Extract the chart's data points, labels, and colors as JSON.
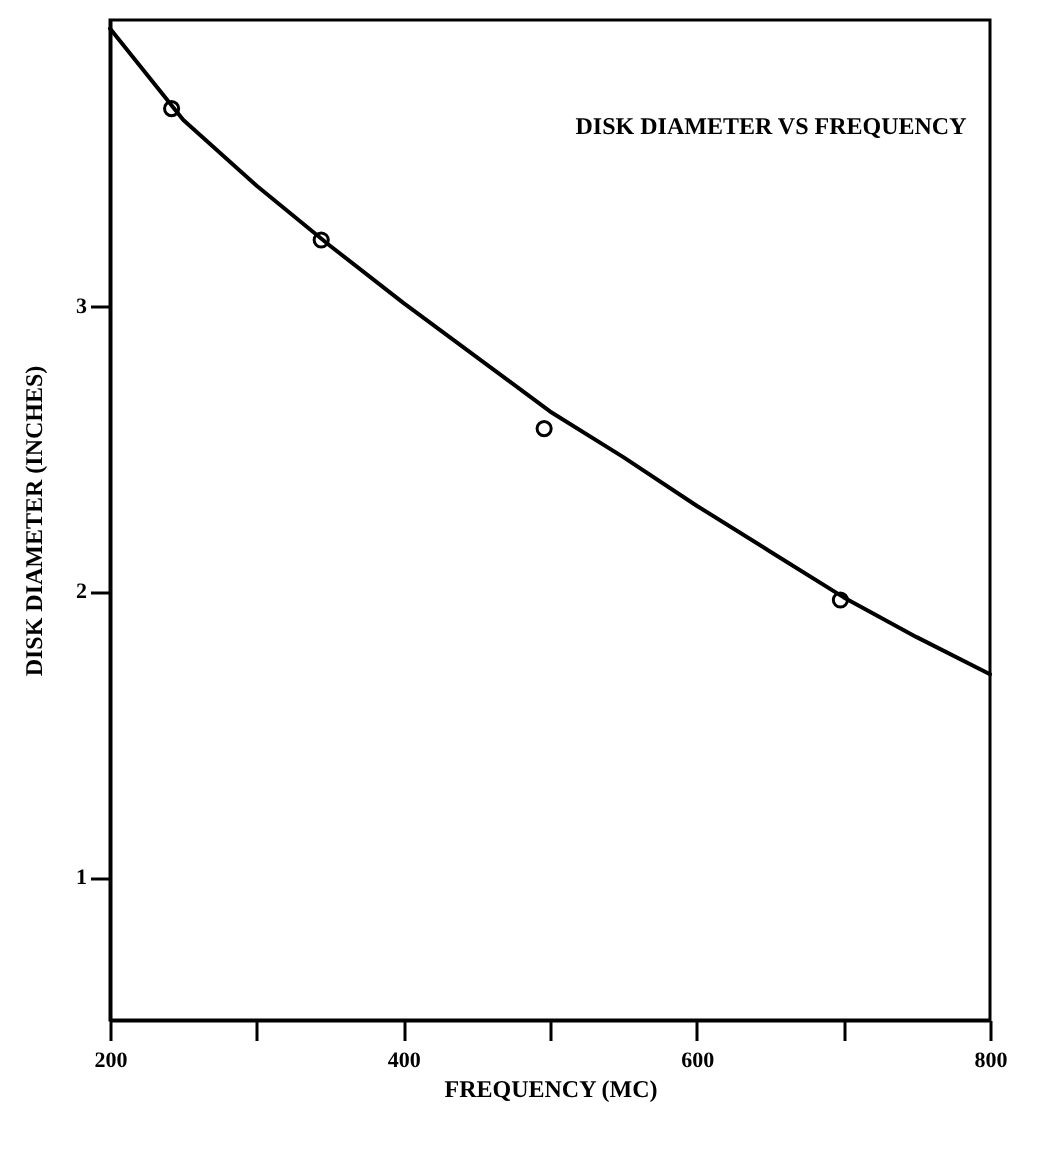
{
  "chart_data": {
    "type": "scatter",
    "title": "DISK DIAMETER   VS   FREQUENCY",
    "xlabel": "FREQUENCY (MC)",
    "ylabel": "DISK DIAMETER   (INCHES)",
    "xlim": [
      200,
      800
    ],
    "xticks": [
      200,
      {
        "value": 300,
        "label": null
      },
      400,
      {
        "value": 500,
        "label": null
      },
      600,
      {
        "value": 700,
        "label": null
      },
      800
    ],
    "ylim": [
      0.5,
      4
    ],
    "yticks": [
      1,
      2,
      3
    ],
    "grid": false,
    "series": [
      {
        "type": "scatter",
        "color": "#000000",
        "marker": "circle",
        "x": [
          242,
          344,
          496,
          698
        ],
        "values": [
          3.69,
          3.23,
          2.57,
          1.97
        ]
      },
      {
        "type": "line",
        "color": "#000000",
        "marker": "none",
        "line_style": "solid",
        "x": [
          200,
          250,
          300,
          350,
          400,
          450,
          500,
          550,
          600,
          650,
          700,
          750,
          800
        ],
        "values": [
          3.97,
          3.65,
          3.42,
          3.21,
          3.01,
          2.82,
          2.63,
          2.47,
          2.3,
          2.14,
          1.98,
          1.84,
          1.71
        ]
      }
    ]
  }
}
